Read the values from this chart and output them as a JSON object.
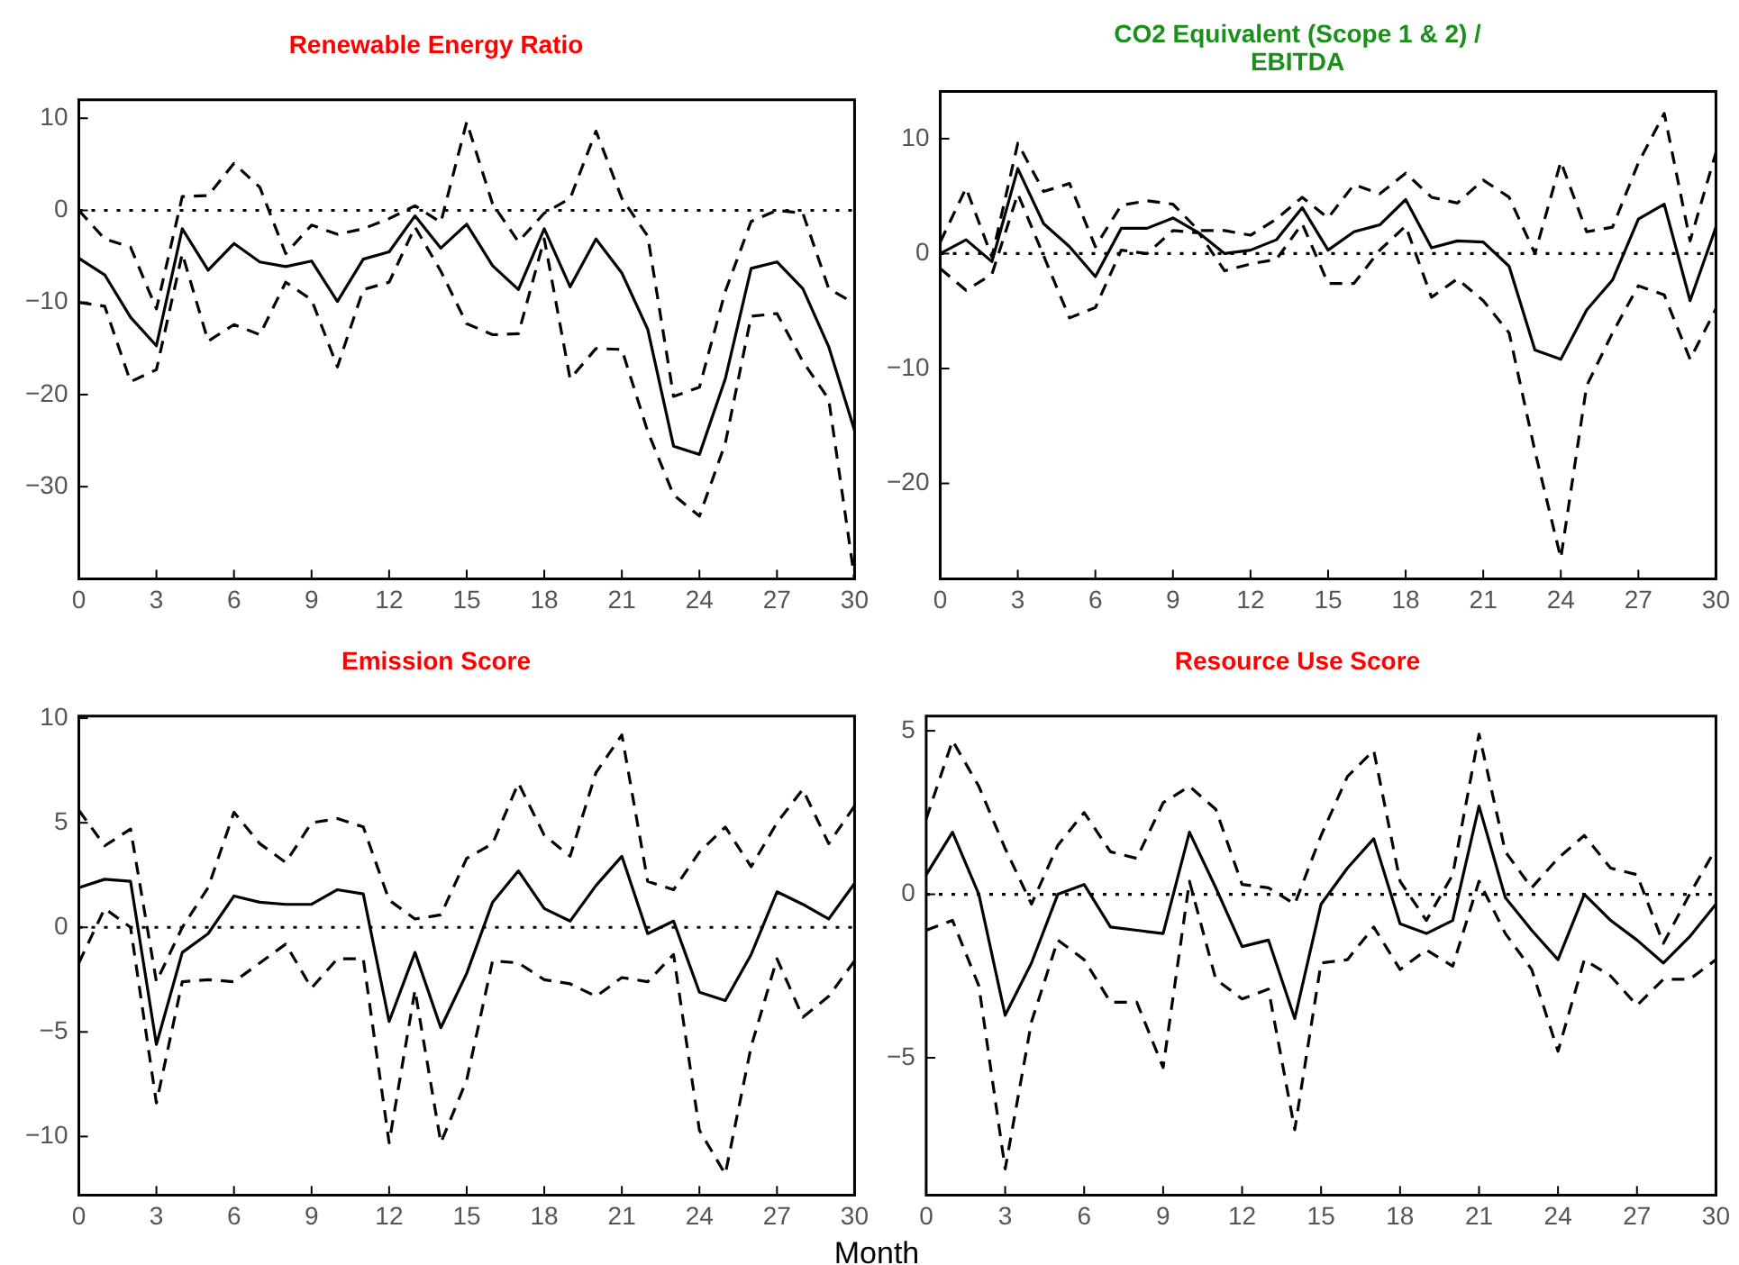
{
  "chart_data": [
    {
      "type": "line",
      "title": "Renewable Energy Ratio",
      "x": [
        0,
        1,
        2,
        3,
        4,
        5,
        6,
        7,
        8,
        9,
        10,
        11,
        12,
        13,
        14,
        15,
        16,
        17,
        18,
        19,
        20,
        21,
        22,
        23,
        24,
        25,
        26,
        27,
        28,
        29,
        30
      ],
      "xlim": [
        0,
        30
      ],
      "xticks": [
        0,
        3,
        6,
        9,
        12,
        15,
        18,
        21,
        24,
        27,
        30
      ],
      "ylim": [
        -40,
        12
      ],
      "yticks": [
        -30,
        -20,
        -10,
        0,
        10
      ],
      "grid": false,
      "legend": false,
      "marker": "none",
      "series": [
        {
          "color": "#000000",
          "line_style": "solid",
          "values": [
            -5.2,
            -7,
            -11.6,
            -14.7,
            -2,
            -6.5,
            -3.6,
            -5.6,
            -6.1,
            -5.5,
            -9.9,
            -5.3,
            -4.5,
            -0.6,
            -4.1,
            -1.5,
            -6,
            -8.6,
            -2,
            -8.3,
            -3.1,
            -6.8,
            -12.9,
            -25.6,
            -26.5,
            -18.3,
            -6.3,
            -5.6,
            -8.5,
            -14.8,
            -23.9
          ]
        },
        {
          "color": "#000000",
          "line_style": "dashed",
          "values": [
            0,
            -3.1,
            -4,
            -10.7,
            1.5,
            1.6,
            5.1,
            2.5,
            -4.7,
            -1.6,
            -2.6,
            -2,
            -0.9,
            0.5,
            -1.3,
            9.6,
            0.7,
            -3.4,
            -0.3,
            1.3,
            8.6,
            1.3,
            -2.8,
            -20.2,
            -19.2,
            -8.8,
            -1.2,
            0,
            -0.3,
            -8.5,
            -10.1
          ]
        },
        {
          "color": "#000000",
          "line_style": "dashed",
          "values": [
            -10,
            -10.4,
            -18.6,
            -17.3,
            -4.7,
            -14.2,
            -12.4,
            -13.5,
            -7.8,
            -9.7,
            -17,
            -8.6,
            -7.8,
            -1.8,
            -6.6,
            -12.3,
            -13.5,
            -13.4,
            -3.1,
            -18.3,
            -15,
            -15.1,
            -24,
            -30.9,
            -33.2,
            -25.3,
            -11.5,
            -11.2,
            -16.4,
            -20.5,
            -40
          ]
        }
      ],
      "ref_lines": [
        {
          "axis": "y",
          "value": 0,
          "color": "#000000",
          "line_style": "dotted"
        }
      ]
    },
    {
      "type": "line",
      "title": "CO2 Equivalent (Scope 1 & 2) / EBITDA",
      "x": [
        0,
        1,
        2,
        3,
        4,
        5,
        6,
        7,
        8,
        9,
        10,
        11,
        12,
        13,
        14,
        15,
        16,
        17,
        18,
        19,
        20,
        21,
        22,
        23,
        24,
        25,
        26,
        27,
        28,
        29,
        30
      ],
      "xlim": [
        0,
        30
      ],
      "xticks": [
        0,
        3,
        6,
        9,
        12,
        15,
        18,
        21,
        24,
        27,
        30
      ],
      "ylim": [
        -28.3,
        14.1
      ],
      "yticks": [
        -20,
        -10,
        0,
        10
      ],
      "grid": false,
      "legend": false,
      "marker": "none",
      "series": [
        {
          "color": "#000000",
          "line_style": "solid",
          "values": [
            0,
            1.2,
            -0.7,
            7.4,
            2.6,
            0.6,
            -2,
            2.2,
            2.2,
            3.1,
            1.8,
            0,
            0.3,
            1.2,
            4,
            0.3,
            1.9,
            2.5,
            4.7,
            0.5,
            1.1,
            1,
            -1.1,
            -8.4,
            -9.2,
            -4.9,
            -2.3,
            3,
            4.3,
            -4.1,
            2.3
          ]
        },
        {
          "color": "#000000",
          "line_style": "dashed",
          "values": [
            1,
            5.7,
            -0.3,
            9.6,
            5.4,
            6.1,
            0.6,
            4.2,
            4.6,
            4.3,
            2,
            2,
            1.6,
            3,
            4.9,
            3.1,
            6,
            5.2,
            7,
            4.9,
            4.4,
            6.4,
            4.9,
            0,
            8,
            1.9,
            2.3,
            7.9,
            12.2,
            1.1,
            8.8
          ]
        },
        {
          "color": "#000000",
          "line_style": "dashed",
          "values": [
            -1.3,
            -3.2,
            -1.8,
            5.2,
            -0.2,
            -5.6,
            -4.7,
            0.3,
            0,
            2,
            1.8,
            -1.5,
            -0.9,
            -0.5,
            2.6,
            -2.6,
            -2.6,
            0.3,
            2.4,
            -3.8,
            -2.2,
            -4.1,
            -6.9,
            -17.2,
            -26.5,
            -11.5,
            -6.9,
            -2.8,
            -3.6,
            -9.2,
            -4.8
          ]
        }
      ],
      "ref_lines": [
        {
          "axis": "y",
          "value": 0,
          "color": "#000000",
          "line_style": "dotted"
        }
      ]
    },
    {
      "type": "line",
      "title": "Emission Score",
      "xlabel": "Month",
      "x": [
        0,
        1,
        2,
        3,
        4,
        5,
        6,
        7,
        8,
        9,
        10,
        11,
        12,
        13,
        14,
        15,
        16,
        17,
        18,
        19,
        20,
        21,
        22,
        23,
        24,
        25,
        26,
        27,
        28,
        29,
        30
      ],
      "xlim": [
        0,
        30
      ],
      "xticks": [
        0,
        3,
        6,
        9,
        12,
        15,
        18,
        21,
        24,
        27,
        30
      ],
      "ylim": [
        -12.8,
        10.1
      ],
      "yticks": [
        -10,
        -5,
        0,
        5,
        10
      ],
      "grid": false,
      "legend": false,
      "marker": "none",
      "series": [
        {
          "color": "#000000",
          "line_style": "solid",
          "values": [
            1.9,
            2.3,
            2.2,
            -5.6,
            -1.2,
            -0.3,
            1.5,
            1.2,
            1.1,
            1.1,
            1.8,
            1.6,
            -4.5,
            -1.2,
            -4.8,
            -2.2,
            1.2,
            2.7,
            0.9,
            0.3,
            2,
            3.4,
            -0.3,
            0.3,
            -3.1,
            -3.5,
            -1.3,
            1.7,
            1.1,
            0.4,
            2.1
          ]
        },
        {
          "color": "#000000",
          "line_style": "dashed",
          "values": [
            5.6,
            3.9,
            4.7,
            -2.6,
            0,
            1.9,
            5.5,
            4,
            3.1,
            5,
            5.2,
            4.8,
            1.3,
            0.4,
            0.6,
            3.3,
            4,
            6.9,
            4.4,
            3.4,
            7.4,
            9.2,
            2.2,
            1.8,
            3.6,
            4.8,
            2.9,
            5,
            6.6,
            4,
            5.8
          ]
        },
        {
          "color": "#000000",
          "line_style": "dashed",
          "values": [
            -1.7,
            0.9,
            0,
            -8.4,
            -2.6,
            -2.5,
            -2.6,
            -1.7,
            -0.8,
            -2.9,
            -1.5,
            -1.5,
            -10.3,
            -3,
            -10.3,
            -7.3,
            -1.6,
            -1.7,
            -2.5,
            -2.7,
            -3.3,
            -2.4,
            -2.6,
            -1.3,
            -9.7,
            -11.8,
            -5.7,
            -1.5,
            -4.3,
            -3.3,
            -1.6
          ]
        }
      ],
      "ref_lines": [
        {
          "axis": "y",
          "value": 0,
          "color": "#000000",
          "line_style": "dotted"
        }
      ]
    },
    {
      "type": "line",
      "title": "Resource Use Score",
      "x": [
        0,
        1,
        2,
        3,
        4,
        5,
        6,
        7,
        8,
        9,
        10,
        11,
        12,
        13,
        14,
        15,
        16,
        17,
        18,
        19,
        20,
        21,
        22,
        23,
        24,
        25,
        26,
        27,
        28,
        29,
        30
      ],
      "xlim": [
        0,
        30
      ],
      "xticks": [
        0,
        3,
        6,
        9,
        12,
        15,
        18,
        21,
        24,
        27,
        30
      ],
      "ylim": [
        -9.2,
        5.45
      ],
      "yticks": [
        -5,
        0,
        5
      ],
      "grid": false,
      "legend": false,
      "marker": "none",
      "series": [
        {
          "color": "#000000",
          "line_style": "solid",
          "values": [
            0.6,
            1.9,
            0,
            -3.7,
            -2.1,
            0,
            0.3,
            -1,
            -1.1,
            -1.2,
            1.9,
            0.2,
            -1.6,
            -1.4,
            -3.8,
            -0.3,
            0.8,
            1.7,
            -0.9,
            -1.2,
            -0.8,
            2.7,
            -0.1,
            -1.1,
            -2,
            0,
            -0.8,
            -1.4,
            -2.1,
            -1.3,
            -0.3
          ]
        },
        {
          "color": "#000000",
          "line_style": "dashed",
          "values": [
            2.3,
            4.7,
            3.3,
            1.4,
            -0.3,
            1.5,
            2.5,
            1.3,
            1.1,
            2.8,
            3.3,
            2.6,
            0.3,
            0.2,
            -0.3,
            1.8,
            3.6,
            4.4,
            0.4,
            -0.8,
            0.6,
            4.9,
            1.3,
            0.2,
            1.1,
            1.8,
            0.8,
            0.6,
            -1.5,
            0,
            1.4
          ]
        },
        {
          "color": "#000000",
          "line_style": "dashed",
          "values": [
            -1.1,
            -0.8,
            -2.8,
            -8.4,
            -3.9,
            -1.4,
            -2,
            -3.3,
            -3.3,
            -5.3,
            0.4,
            -2.6,
            -3.2,
            -2.9,
            -7.2,
            -2.1,
            -2,
            -1,
            -2.3,
            -1.7,
            -2.2,
            0.4,
            -1.2,
            -2.3,
            -4.8,
            -2,
            -2.5,
            -3.4,
            -2.6,
            -2.6,
            -2
          ]
        }
      ],
      "ref_lines": [
        {
          "axis": "y",
          "value": 0,
          "color": "#000000",
          "line_style": "dotted"
        }
      ]
    }
  ]
}
